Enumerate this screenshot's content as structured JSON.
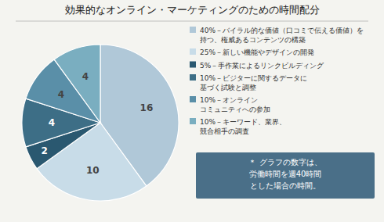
{
  "chart_data": {
    "type": "pie",
    "title": "効果的なオンライン・マーケティングのための時間配分",
    "categories": [
      "40%－バイラル的な価値（口コミで伝える価値）を\n持つ、権威あるコンテンツの構築",
      "25%－新しい機能やデザインの開発",
      "5%－手作業によるリンクビルディング",
      "10%－ビジターに関するデータに\n基づく試験と調整",
      "10%－オンライン\nコミュニティへの参加",
      "10%－キーワード、業界、\n競合相手の調査"
    ],
    "values": [
      16,
      10,
      2,
      4,
      4,
      4
    ],
    "colors": [
      "#b0c8d8",
      "#c8dce8",
      "#2a5870",
      "#3d6e86",
      "#5a8fa8",
      "#7aaec0"
    ],
    "data_labels": true,
    "annotations": [
      "＊ グラフの数字は、",
      "労働時間を週40時間",
      "とした場合の時間。"
    ]
  }
}
